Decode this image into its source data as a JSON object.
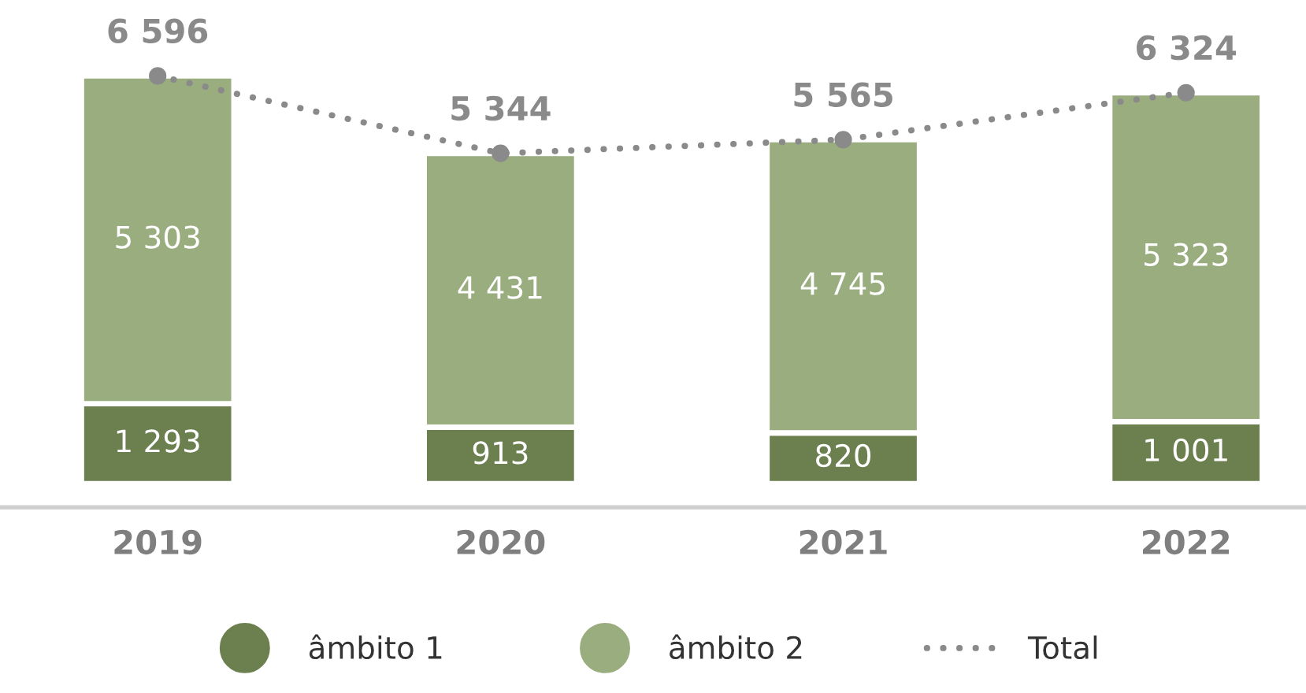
{
  "chart_data": {
    "type": "bar",
    "stacked": true,
    "categories": [
      "2019",
      "2020",
      "2021",
      "2022"
    ],
    "series": [
      {
        "name": "âmbito 1",
        "color": "#6b7f4f",
        "values": [
          1293,
          913,
          820,
          1001
        ],
        "value_labels": [
          "1 293",
          "913",
          "820",
          "1 001"
        ]
      },
      {
        "name": "âmbito 2",
        "color": "#9aad7f",
        "values": [
          5303,
          4431,
          4745,
          5323
        ],
        "value_labels": [
          "5 303",
          "4 431",
          "4 745",
          "5 323"
        ]
      },
      {
        "name": "Total",
        "type": "line",
        "color": "#8a8a8a",
        "line_style": "dotted",
        "marker": "circle",
        "values": [
          6596,
          5344,
          5565,
          6324
        ],
        "value_labels": [
          "6 596",
          "5 344",
          "5 565",
          "6 324"
        ]
      }
    ],
    "legend": "bottom"
  }
}
